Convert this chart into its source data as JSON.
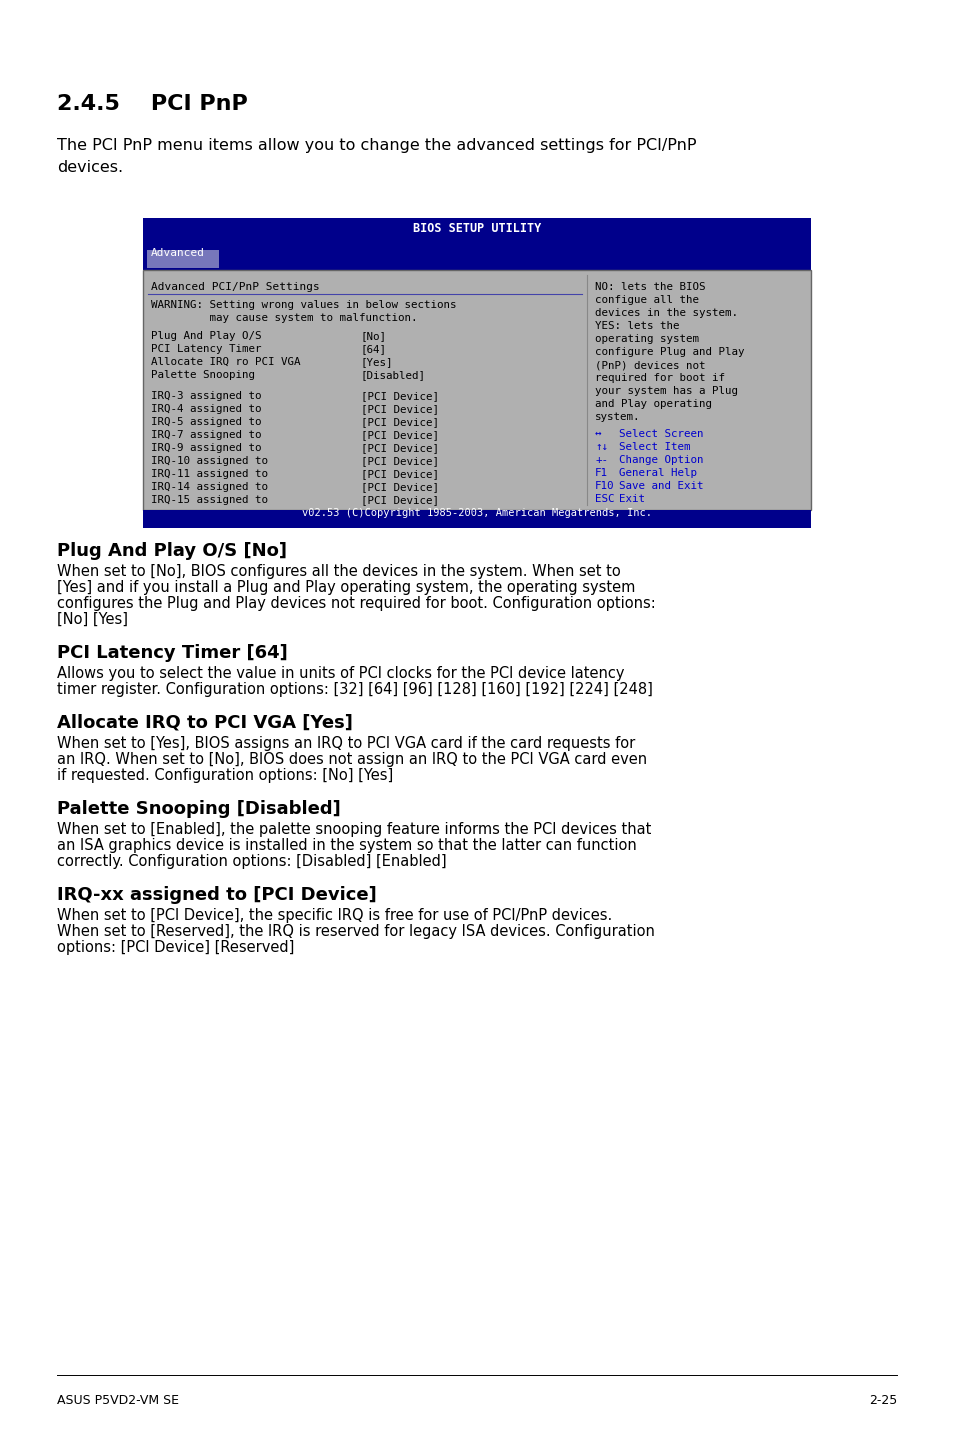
{
  "title": "2.4.5    PCI PnP",
  "intro_line1": "The PCI PnP menu items allow you to change the advanced settings for PCI/PnP",
  "intro_line2": "devices.",
  "bios_title": "BIOS SETUP UTILITY",
  "bios_tab": "Advanced",
  "bios_header": "Advanced PCI/PnP Settings",
  "bios_warning_line1": "WARNING: Setting wrong values in below sections",
  "bios_warning_line2": "         may cause system to malfunction.",
  "bios_items": [
    [
      "Plug And Play O/S",
      "[No]"
    ],
    [
      "PCI Latency Timer",
      "[64]"
    ],
    [
      "Allocate IRQ ro PCI VGA",
      "[Yes]"
    ],
    [
      "Palette Snooping",
      "[Disabled]"
    ]
  ],
  "bios_irqs": [
    [
      "IRQ-3 assigned to",
      "[PCI Device]"
    ],
    [
      "IRQ-4 assigned to",
      "[PCI Device]"
    ],
    [
      "IRQ-5 assigned to",
      "[PCI Device]"
    ],
    [
      "IRQ-7 assigned to",
      "[PCI Device]"
    ],
    [
      "IRQ-9 assigned to",
      "[PCI Device]"
    ],
    [
      "IRQ-10 assigned to",
      "[PCI Device]"
    ],
    [
      "IRQ-11 assigned to",
      "[PCI Device]"
    ],
    [
      "IRQ-14 assigned to",
      "[PCI Device]"
    ],
    [
      "IRQ-15 assigned to",
      "[PCI Device]"
    ]
  ],
  "bios_help": [
    "NO: lets the BIOS",
    "configue all the",
    "devices in the system.",
    "YES: lets the",
    "operating system",
    "configure Plug and Play",
    "(PnP) devices not",
    "required for boot if",
    "your system has a Plug",
    "and Play operating",
    "system."
  ],
  "bios_keys": [
    [
      "↔",
      "Select Screen"
    ],
    [
      "↑↓",
      "Select Item"
    ],
    [
      "+-",
      "Change Option"
    ],
    [
      "F1",
      "General Help"
    ],
    [
      "F10",
      "Save and Exit"
    ],
    [
      "ESC",
      "Exit"
    ]
  ],
  "bios_footer": "v02.53 (C)Copyright 1985-2003, American Megatrends, Inc.",
  "sections": [
    {
      "heading": "Plug And Play O/S [No]",
      "body": "When set to [No], BIOS configures all the devices in the system. When set to\n[Yes] and if you install a Plug and Play operating system, the operating system\nconfigures the Plug and Play devices not required for boot. Configuration options:\n[No] [Yes]"
    },
    {
      "heading": "PCI Latency Timer [64]",
      "body": "Allows you to select the value in units of PCI clocks for the PCI device latency\ntimer register. Configuration options: [32] [64] [96] [128] [160] [192] [224] [248]"
    },
    {
      "heading": "Allocate IRQ to PCI VGA [Yes]",
      "body": "When set to [Yes], BIOS assigns an IRQ to PCI VGA card if the card requests for\nan IRQ. When set to [No], BIOS does not assign an IRQ to the PCI VGA card even\nif requested. Configuration options: [No] [Yes]"
    },
    {
      "heading": "Palette Snooping [Disabled]",
      "body": "When set to [Enabled], the palette snooping feature informs the PCI devices that\nan ISA graphics device is installed in the system so that the latter can function\ncorrectly. Configuration options: [Disabled] [Enabled]"
    },
    {
      "heading": "IRQ-xx assigned to [PCI Device]",
      "body": "When set to [PCI Device], the specific IRQ is free for use of PCI/PnP devices.\nWhen set to [Reserved], the IRQ is reserved for legacy ISA devices. Configuration\noptions: [PCI Device] [Reserved]"
    }
  ],
  "footer_left": "ASUS P5VD2-VM SE",
  "footer_right": "2-25",
  "bg_color": "#ffffff",
  "bios_blue": "#00008B",
  "bios_gray": "#b0b0b0",
  "bios_help_blue": "#0000cc"
}
